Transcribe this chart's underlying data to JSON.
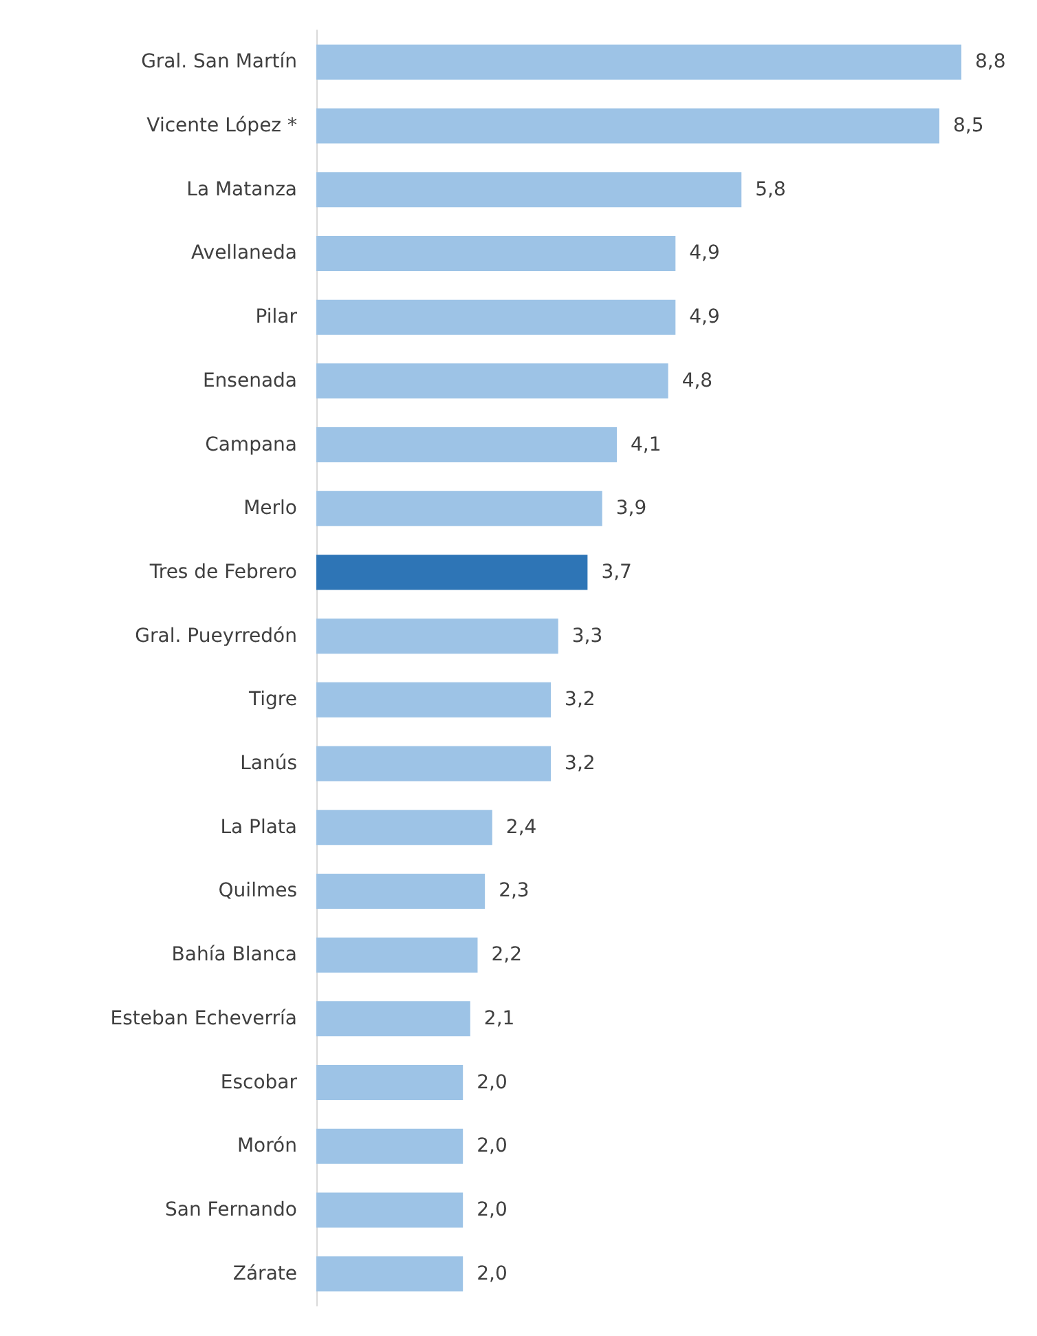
{
  "chart_data": {
    "type": "bar",
    "orientation": "horizontal",
    "categories": [
      "Gral. San Martín",
      "Vicente López *",
      "La Matanza",
      "Avellaneda",
      "Pilar",
      "Ensenada",
      "Campana",
      "Merlo",
      "Tres de Febrero",
      "Gral. Pueyrredón",
      "Tigre",
      "Lanús",
      "La Plata",
      "Quilmes",
      "Bahía Blanca",
      "Esteban Echeverría",
      "Escobar",
      "Morón",
      "San Fernando",
      "Zárate"
    ],
    "values": [
      8.8,
      8.5,
      5.8,
      4.9,
      4.9,
      4.8,
      4.1,
      3.9,
      3.7,
      3.3,
      3.2,
      3.2,
      2.4,
      2.3,
      2.2,
      2.1,
      2.0,
      2.0,
      2.0,
      2.0
    ],
    "colors": [
      "#9dc3e6",
      "#9dc3e6",
      "#9dc3e6",
      "#9dc3e6",
      "#9dc3e6",
      "#9dc3e6",
      "#9dc3e6",
      "#9dc3e6",
      "#2e75b6",
      "#9dc3e6",
      "#9dc3e6",
      "#9dc3e6",
      "#9dc3e6",
      "#9dc3e6",
      "#9dc3e6",
      "#9dc3e6",
      "#9dc3e6",
      "#9dc3e6",
      "#9dc3e6",
      "#9dc3e6"
    ],
    "value_labels": [
      "8,8",
      "8,5",
      "5,8",
      "4,9",
      "4,9",
      "4,8",
      "4,1",
      "3,9",
      "3,7",
      "3,3",
      "3,2",
      "3,2",
      "2,4",
      "2,3",
      "2,2",
      "2,1",
      "2,0",
      "2,0",
      "2,0",
      "2,0"
    ],
    "grid": false
  }
}
